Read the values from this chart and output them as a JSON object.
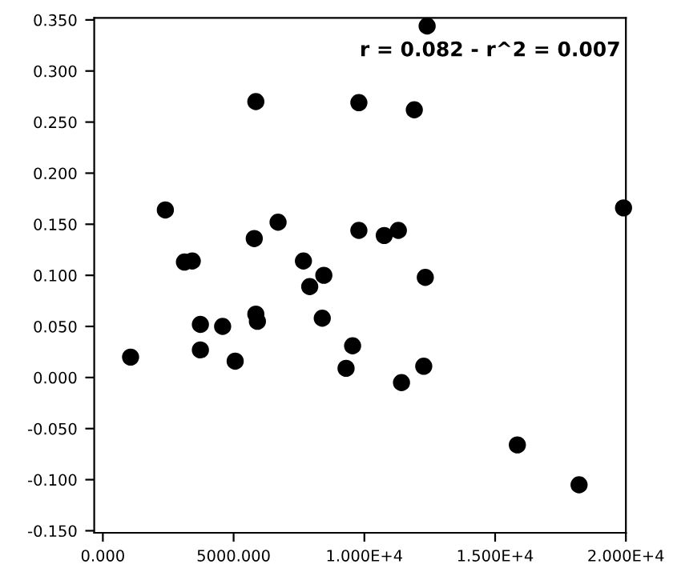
{
  "chart_data": {
    "type": "scatter",
    "annotations": [
      "r = 0.082 - r^2 = 0.007"
    ],
    "x": [
      1060,
      2390,
      3120,
      3420,
      3730,
      3730,
      4580,
      5060,
      5850,
      5790,
      5850,
      5910,
      6700,
      7670,
      7910,
      8450,
      8390,
      9790,
      9790,
      9300,
      9550,
      10760,
      11300,
      11910,
      12400,
      12330,
      12270,
      11420,
      15850,
      18210,
      19910
    ],
    "series": [
      {
        "color": "#000000",
        "values": [
          0.02,
          0.164,
          0.113,
          0.114,
          0.052,
          0.027,
          0.05,
          0.016,
          0.27,
          0.136,
          0.062,
          0.055,
          0.152,
          0.114,
          0.089,
          0.1,
          0.058,
          0.269,
          0.144,
          0.009,
          0.031,
          0.139,
          0.144,
          0.262,
          0.344,
          0.098,
          0.011,
          -0.005,
          -0.066,
          -0.105,
          0.166
        ]
      }
    ],
    "marker": "circle",
    "grid": false,
    "legend": false,
    "xlim": [
      -330,
      20000
    ],
    "ylim": [
      -0.152,
      0.352
    ],
    "xticks": [
      {
        "value": 0,
        "label": "0.000"
      },
      {
        "value": 5000,
        "label": "5000.000"
      },
      {
        "value": 10000,
        "label": "1.000E+4"
      },
      {
        "value": 15000,
        "label": "1.500E+4"
      },
      {
        "value": 20000,
        "label": "2.000E+4"
      }
    ],
    "yticks": [
      {
        "value": -0.15,
        "label": "-0.150"
      },
      {
        "value": -0.1,
        "label": "-0.100"
      },
      {
        "value": -0.05,
        "label": "-0.050"
      },
      {
        "value": 0,
        "label": "0.000"
      },
      {
        "value": 0.05,
        "label": "0.050"
      },
      {
        "value": 0.1,
        "label": "0.100"
      },
      {
        "value": 0.15,
        "label": "0.150"
      },
      {
        "value": 0.2,
        "label": "0.200"
      },
      {
        "value": 0.25,
        "label": "0.250"
      },
      {
        "value": 0.3,
        "label": "0.300"
      },
      {
        "value": 0.35,
        "label": "0.350"
      }
    ]
  }
}
